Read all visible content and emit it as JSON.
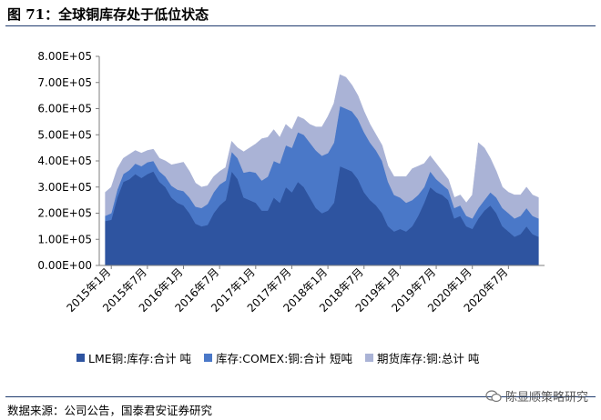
{
  "figure": {
    "title": "图 71：全球铜库存处于低位状态",
    "source": "数据来源：公司公告，国泰君安证券研究",
    "watermark": "陈显顺策略研究"
  },
  "chart_data": {
    "type": "area",
    "stacked": true,
    "title": "",
    "xlabel": "",
    "ylabel": "",
    "ylim": [
      0,
      800000
    ],
    "yticks": [
      "0.00E+00",
      "1.00E+05",
      "2.00E+05",
      "3.00E+05",
      "4.00E+05",
      "5.00E+05",
      "6.00E+05",
      "7.00E+05",
      "8.00E+05"
    ],
    "xlim": [
      "2014-11",
      "2021-01"
    ],
    "xticks": [
      "2015年1月",
      "2015年7月",
      "2016年1月",
      "2016年7月",
      "2017年1月",
      "2017年7月",
      "2018年1月",
      "2018年7月",
      "2019年1月",
      "2019年7月",
      "2020年1月",
      "2020年7月"
    ],
    "x": [
      "2014-12",
      "2015-01",
      "2015-02",
      "2015-03",
      "2015-04",
      "2015-05",
      "2015-06",
      "2015-07",
      "2015-08",
      "2015-09",
      "2015-10",
      "2015-11",
      "2015-12",
      "2016-01",
      "2016-02",
      "2016-03",
      "2016-04",
      "2016-05",
      "2016-06",
      "2016-07",
      "2016-08",
      "2016-09",
      "2016-10",
      "2016-11",
      "2016-12",
      "2017-01",
      "2017-02",
      "2017-03",
      "2017-04",
      "2017-05",
      "2017-06",
      "2017-07",
      "2017-08",
      "2017-09",
      "2017-10",
      "2017-11",
      "2017-12",
      "2018-01",
      "2018-02",
      "2018-03",
      "2018-04",
      "2018-05",
      "2018-06",
      "2018-07",
      "2018-08",
      "2018-09",
      "2018-10",
      "2018-11",
      "2018-12",
      "2019-01",
      "2019-02",
      "2019-03",
      "2019-04",
      "2019-05",
      "2019-06",
      "2019-07",
      "2019-08",
      "2019-09",
      "2019-10",
      "2019-11",
      "2019-12",
      "2020-01",
      "2020-02",
      "2020-03",
      "2020-04",
      "2020-05",
      "2020-06",
      "2020-07",
      "2020-08",
      "2020-09",
      "2020-10",
      "2020-11",
      "2020-12"
    ],
    "series": [
      {
        "name": "LME铜:库存:合计 吨",
        "color": "#2e54a0",
        "values": [
          170000,
          175000,
          260000,
          320000,
          330000,
          350000,
          335000,
          350000,
          360000,
          320000,
          300000,
          260000,
          240000,
          230000,
          200000,
          160000,
          150000,
          155000,
          200000,
          230000,
          250000,
          360000,
          330000,
          260000,
          250000,
          240000,
          210000,
          210000,
          260000,
          240000,
          300000,
          280000,
          320000,
          300000,
          260000,
          220000,
          200000,
          210000,
          240000,
          380000,
          370000,
          360000,
          330000,
          280000,
          250000,
          230000,
          200000,
          150000,
          130000,
          140000,
          130000,
          150000,
          190000,
          240000,
          300000,
          280000,
          270000,
          250000,
          180000,
          190000,
          150000,
          140000,
          180000,
          210000,
          230000,
          200000,
          150000,
          130000,
          110000,
          120000,
          150000,
          120000,
          110000
        ]
      },
      {
        "name": "库存:COMEX:铜:合计 短吨",
        "color": "#4a78c8",
        "values": [
          20000,
          25000,
          30000,
          30000,
          35000,
          40000,
          45000,
          45000,
          40000,
          40000,
          40000,
          45000,
          50000,
          55000,
          60000,
          65000,
          70000,
          80000,
          80000,
          80000,
          75000,
          75000,
          80000,
          95000,
          110000,
          115000,
          115000,
          130000,
          140000,
          150000,
          160000,
          170000,
          190000,
          200000,
          210000,
          220000,
          220000,
          220000,
          230000,
          230000,
          230000,
          230000,
          230000,
          230000,
          220000,
          210000,
          200000,
          170000,
          140000,
          120000,
          110000,
          100000,
          80000,
          60000,
          60000,
          50000,
          40000,
          40000,
          40000,
          40000,
          40000,
          40000,
          40000,
          40000,
          50000,
          60000,
          70000,
          70000,
          70000,
          70000,
          70000,
          70000,
          70000
        ]
      },
      {
        "name": "期货库存:铜:总计 吨",
        "color": "#aab3d6",
        "values": [
          90000,
          100000,
          80000,
          60000,
          60000,
          50000,
          50000,
          45000,
          45000,
          50000,
          60000,
          80000,
          100000,
          110000,
          100000,
          90000,
          80000,
          70000,
          60000,
          50000,
          50000,
          40000,
          40000,
          80000,
          90000,
          110000,
          160000,
          150000,
          120000,
          100000,
          80000,
          70000,
          60000,
          60000,
          70000,
          90000,
          110000,
          140000,
          150000,
          120000,
          120000,
          100000,
          90000,
          80000,
          70000,
          60000,
          60000,
          60000,
          70000,
          80000,
          100000,
          120000,
          110000,
          90000,
          60000,
          60000,
          50000,
          40000,
          40000,
          40000,
          50000,
          90000,
          250000,
          200000,
          130000,
          100000,
          80000,
          80000,
          90000,
          80000,
          80000,
          80000,
          80000
        ]
      }
    ],
    "legend_position": "bottom",
    "grid": false
  }
}
